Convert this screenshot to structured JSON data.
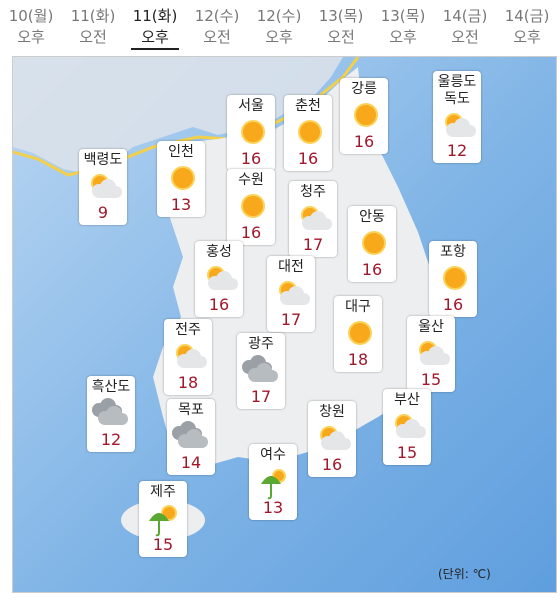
{
  "tabs": [
    {
      "date": "10(월)",
      "time": "오후"
    },
    {
      "date": "11(화)",
      "time": "오전"
    },
    {
      "date": "11(화)",
      "time": "오후"
    },
    {
      "date": "12(수)",
      "time": "오전"
    },
    {
      "date": "12(수)",
      "time": "오후"
    },
    {
      "date": "13(목)",
      "time": "오전"
    },
    {
      "date": "13(목)",
      "time": "오후"
    },
    {
      "date": "14(금)",
      "time": "오전"
    },
    {
      "date": "14(금)",
      "time": "오후"
    }
  ],
  "cities": [
    {
      "name": "백령도",
      "temp": 9
    },
    {
      "name": "인천",
      "temp": 13
    },
    {
      "name": "서울",
      "temp": 16
    },
    {
      "name": "춘천",
      "temp": 16
    },
    {
      "name": "강릉",
      "temp": 16
    },
    {
      "name": "울릉도 독도",
      "temp": 12
    },
    {
      "name": "수원",
      "temp": 16
    },
    {
      "name": "청주",
      "temp": 17
    },
    {
      "name": "안동",
      "temp": 16
    },
    {
      "name": "홍성",
      "temp": 16
    },
    {
      "name": "대전",
      "temp": 17
    },
    {
      "name": "포항",
      "temp": 16
    },
    {
      "name": "대구",
      "temp": 18
    },
    {
      "name": "전주",
      "temp": 18
    },
    {
      "name": "광주",
      "temp": 17
    },
    {
      "name": "울산",
      "temp": 15
    },
    {
      "name": "흑산도",
      "temp": 12
    },
    {
      "name": "목포",
      "temp": 14
    },
    {
      "name": "창원",
      "temp": 16
    },
    {
      "name": "부산",
      "temp": 15
    },
    {
      "name": "여수",
      "temp": 13
    },
    {
      "name": "제주",
      "temp": 15
    }
  ],
  "unit_note": "(단위: ℃)"
}
